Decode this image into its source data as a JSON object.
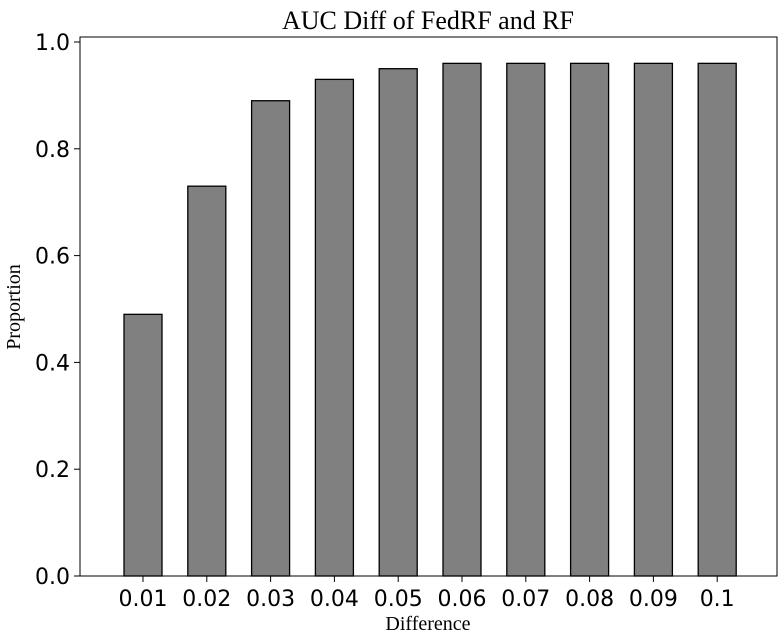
{
  "chart_data": {
    "type": "bar",
    "title": "AUC Diff of FedRF and RF",
    "xlabel": "Difference",
    "ylabel": "Proportion",
    "categories": [
      "0.01",
      "0.02",
      "0.03",
      "0.04",
      "0.05",
      "0.06",
      "0.07",
      "0.08",
      "0.09",
      "0.1"
    ],
    "values": [
      0.49,
      0.73,
      0.89,
      0.93,
      0.95,
      0.96,
      0.96,
      0.96,
      0.96,
      0.96
    ],
    "ylim": [
      0,
      1.0
    ],
    "yticks": [
      "0.0",
      "0.2",
      "0.4",
      "0.6",
      "0.8",
      "1.0"
    ],
    "grid": false,
    "bar_color": "#808080",
    "edge_color": "#000000"
  }
}
